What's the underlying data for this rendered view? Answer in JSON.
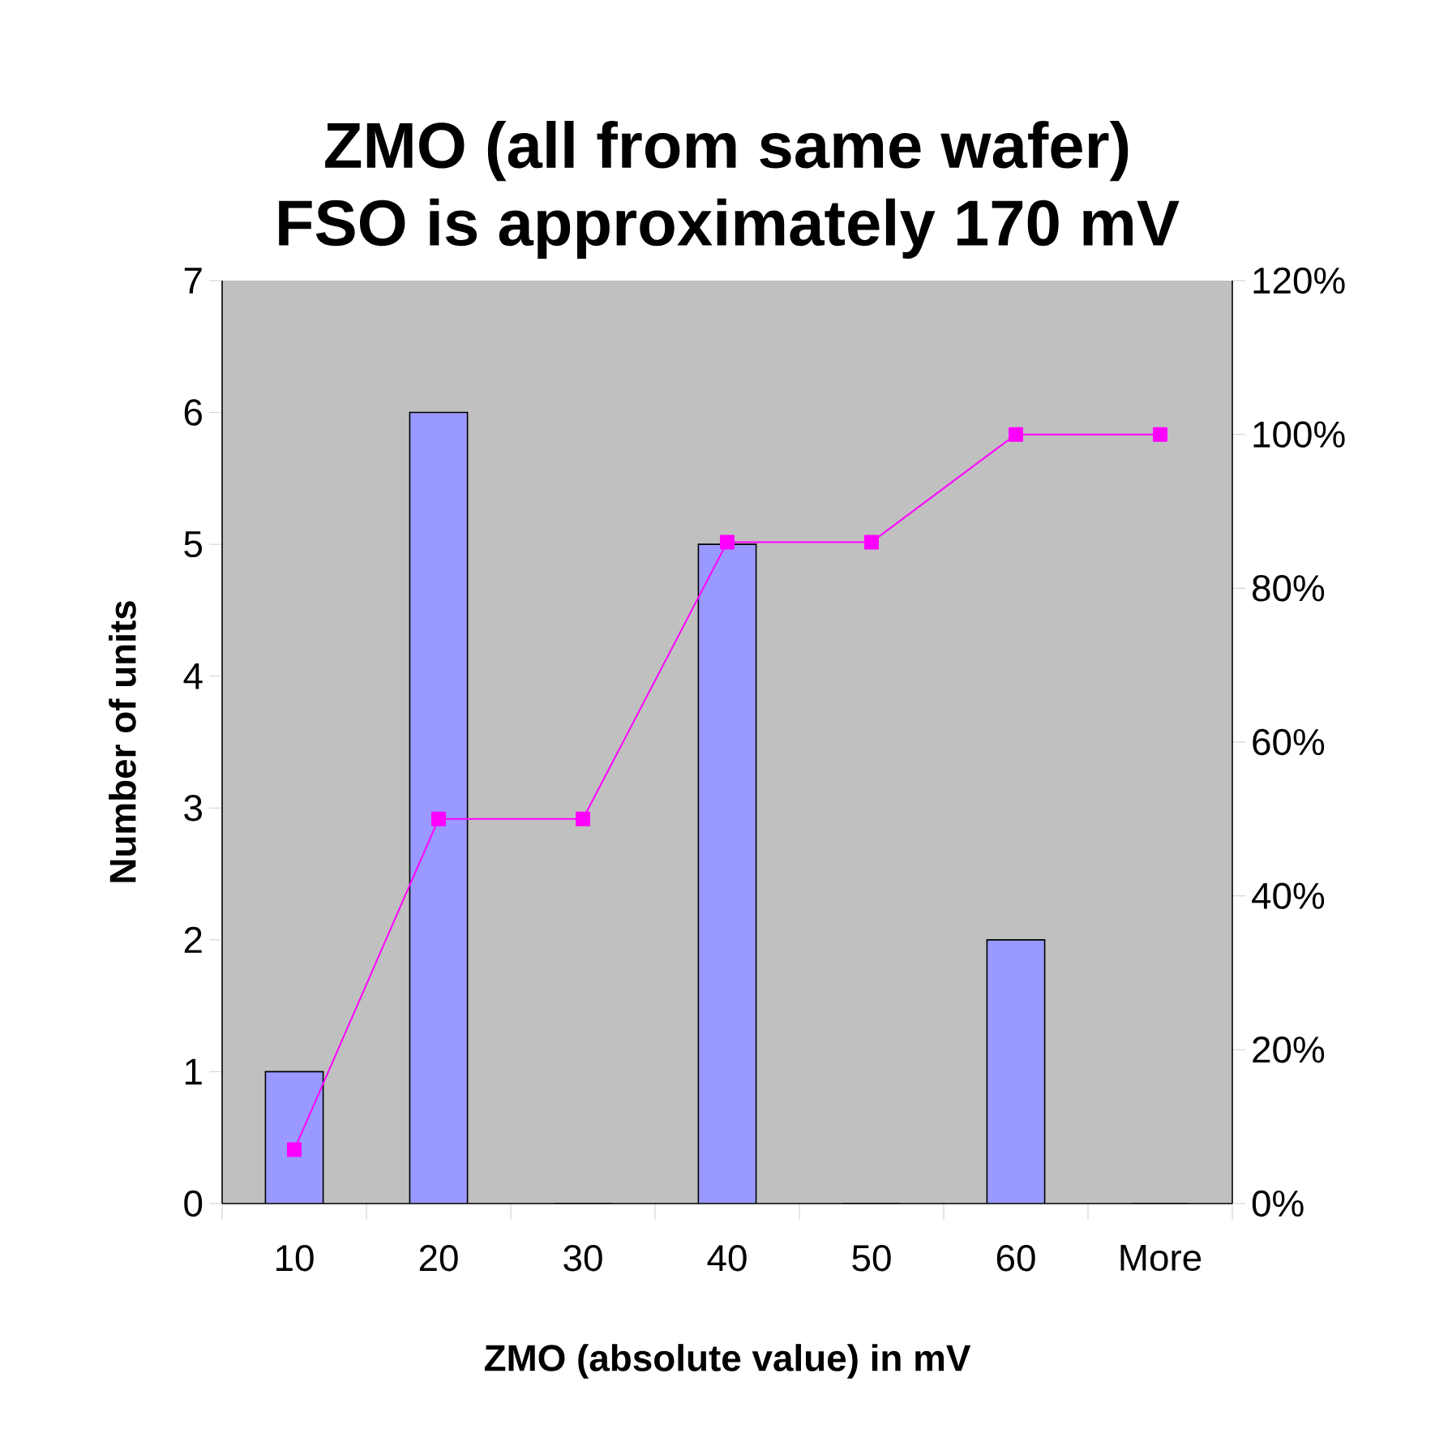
{
  "chart_data": {
    "type": "bar",
    "title": "ZMO (all from same wafer)",
    "subtitle": "FSO is approximately 170 mV",
    "xlabel": "ZMO (absolute value) in mV",
    "ylabel": "Number of units",
    "categories": [
      "10",
      "20",
      "30",
      "40",
      "50",
      "60",
      "More"
    ],
    "series": [
      {
        "color": "#9999ff",
        "values": [
          1,
          6,
          0,
          5,
          0,
          2,
          0
        ]
      },
      {
        "type": "line",
        "axis": "y2",
        "color": "#ff00ff",
        "values": [
          7,
          50,
          50,
          86,
          86,
          100,
          100
        ]
      }
    ],
    "ylim": [
      0,
      7
    ],
    "yticks": [
      0,
      1,
      2,
      3,
      4,
      5,
      6,
      7
    ],
    "y2lim": [
      0,
      120
    ],
    "y2ticks": [
      {
        "value": 0,
        "label": "0%"
      },
      {
        "value": 20,
        "label": "20%"
      },
      {
        "value": 40,
        "label": "40%"
      },
      {
        "value": 60,
        "label": "60%"
      },
      {
        "value": 80,
        "label": "80%"
      },
      {
        "value": 100,
        "label": "100%"
      },
      {
        "value": 120,
        "label": "120%"
      }
    ],
    "marker": "square",
    "line_style": "solid"
  }
}
